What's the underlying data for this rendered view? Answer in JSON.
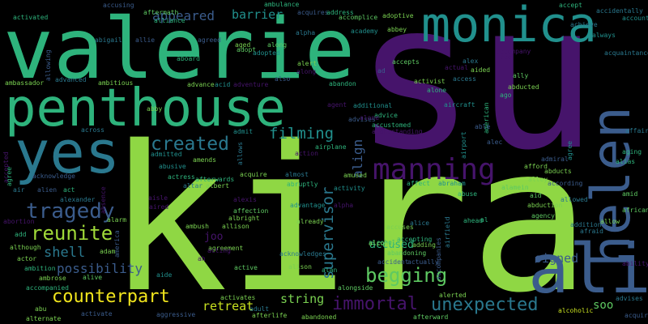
{
  "palette": {
    "background": "#000000",
    "purple": "#46146b",
    "green": "#2eb37c",
    "lime": "#8fd744",
    "teal": "#21908d",
    "blue": "#3b5c8c",
    "yellow": "#f1e51d"
  },
  "words": [
    {
      "id": "w0",
      "text": "su",
      "color": "#46146b"
    },
    {
      "id": "w1",
      "text": "kira",
      "color": "#8fd744"
    },
    {
      "id": "w2",
      "text": "valerie",
      "color": "#2eb37c"
    },
    {
      "id": "w3",
      "text": "penthouse",
      "color": "#2eb37c"
    },
    {
      "id": "w4",
      "text": "monica",
      "color": "#21908d"
    },
    {
      "id": "w5",
      "text": "helen",
      "color": "#3b5c8c"
    },
    {
      "id": "w6",
      "text": "ali",
      "color": "#3b5c8c"
    },
    {
      "id": "w7",
      "text": "yes",
      "color": "#2a788e"
    },
    {
      "id": "w8",
      "text": "manning",
      "color": "#46146b"
    },
    {
      "id": "w9",
      "text": "tragedy",
      "color": "#3b5c8c"
    },
    {
      "id": "w10",
      "text": "reunite",
      "color": "#a0da39"
    },
    {
      "id": "w11",
      "text": "created",
      "color": "#2a788e"
    },
    {
      "id": "w12",
      "text": "filming",
      "color": "#21908d"
    },
    {
      "id": "w13",
      "text": "begging",
      "color": "#5ec962"
    },
    {
      "id": "w14",
      "text": "counterpart",
      "color": "#f1e51d"
    },
    {
      "id": "w15",
      "text": "unexpected",
      "color": "#2a788e"
    },
    {
      "id": "w16",
      "text": "immortal",
      "color": "#46146b"
    },
    {
      "id": "w17",
      "text": "supervisor",
      "color": "#2a788e"
    },
    {
      "id": "w18",
      "text": "appeared",
      "color": "#3b5c8c"
    },
    {
      "id": "w19",
      "text": "barrier",
      "color": "#21908d"
    },
    {
      "id": "w20",
      "text": "shell",
      "color": "#2a788e"
    },
    {
      "id": "w21",
      "text": "possibility",
      "color": "#3b5c8c"
    },
    {
      "id": "w22",
      "text": "retreat",
      "color": "#c8e020"
    },
    {
      "id": "w23",
      "text": "string",
      "color": "#7ad151"
    },
    {
      "id": "w24",
      "text": "signed",
      "color": "#3b5c8c"
    },
    {
      "id": "w25",
      "text": "soo",
      "color": "#5ec962"
    },
    {
      "id": "w26",
      "text": "align",
      "color": "#3b5c8c"
    },
    {
      "id": "w27",
      "text": "joo",
      "color": "#46146b"
    },
    {
      "id": "w28",
      "text": "accused",
      "color": "#2eb37c"
    },
    {
      "id": "w29",
      "text": "ability",
      "color": "#46146b"
    },
    {
      "id": "w30",
      "text": "african",
      "color": "#5ec962"
    },
    {
      "id": "w31",
      "text": "affair",
      "color": "#2a788e"
    },
    {
      "id": "w32",
      "text": "alcohol",
      "color": "#2eb37c"
    },
    {
      "id": "w33",
      "text": "agency",
      "color": "#5ec962"
    },
    {
      "id": "w34",
      "text": "advises",
      "color": "#2a788e"
    },
    {
      "id": "w35",
      "text": "alliance",
      "color": "#2eb37c"
    },
    {
      "id": "w36",
      "text": "activated",
      "color": "#2eb37c"
    },
    {
      "id": "w37",
      "text": "aftermath",
      "color": "#5ec962"
    },
    {
      "id": "w38",
      "text": "ambulance",
      "color": "#2eb37c"
    },
    {
      "id": "w39",
      "text": "acquires",
      "color": "#3b5c8c"
    },
    {
      "id": "w40",
      "text": "address",
      "color": "#2eb37c"
    },
    {
      "id": "w41",
      "text": "accomplice",
      "color": "#5ec962"
    },
    {
      "id": "w42",
      "text": "adoptive",
      "color": "#7ad151"
    },
    {
      "id": "w43",
      "text": "accidentally",
      "color": "#2a788e"
    },
    {
      "id": "w44",
      "text": "accept",
      "color": "#2eb37c"
    },
    {
      "id": "w45",
      "text": "account",
      "color": "#21908d"
    },
    {
      "id": "w46",
      "text": "always",
      "color": "#21908d"
    },
    {
      "id": "w47",
      "text": "achieve",
      "color": "#2a788e"
    },
    {
      "id": "w48",
      "text": "acquaintance",
      "color": "#2a788e"
    },
    {
      "id": "w49",
      "text": "abigail",
      "color": "#2a788e"
    },
    {
      "id": "w50",
      "text": "agreed",
      "color": "#3b5c8c"
    },
    {
      "id": "w51",
      "text": "aged",
      "color": "#7ad151"
    },
    {
      "id": "w52",
      "text": "along",
      "color": "#5ec962"
    },
    {
      "id": "w53",
      "text": "alpha",
      "color": "#2a788e"
    },
    {
      "id": "w54",
      "text": "academy",
      "color": "#21908d"
    },
    {
      "id": "w55",
      "text": "abbey",
      "color": "#7ad151"
    },
    {
      "id": "w56",
      "text": "adopt",
      "color": "#5ec962"
    },
    {
      "id": "w57",
      "text": "adopted",
      "color": "#21908d"
    },
    {
      "id": "w58",
      "text": "alert",
      "color": "#7ad151"
    },
    {
      "id": "w59",
      "text": "accepts",
      "color": "#5ec962"
    },
    {
      "id": "w60",
      "text": "aboard",
      "color": "#2eb37c"
    },
    {
      "id": "w61",
      "text": "advanced",
      "color": "#2a788e"
    },
    {
      "id": "w62",
      "text": "ambitious",
      "color": "#7ad151"
    },
    {
      "id": "w63",
      "text": "ambassador",
      "color": "#7ad151"
    },
    {
      "id": "w64",
      "text": "advance",
      "color": "#7ad151"
    },
    {
      "id": "w65",
      "text": "acid",
      "color": "#21908d"
    },
    {
      "id": "w66",
      "text": "adventure",
      "color": "#46146b"
    },
    {
      "id": "w67",
      "text": "also",
      "color": "#3b5c8c"
    },
    {
      "id": "w68",
      "text": "abandon",
      "color": "#2eb37c"
    },
    {
      "id": "w69",
      "text": "activist",
      "color": "#7ad151"
    },
    {
      "id": "w70",
      "text": "aided",
      "color": "#7ad151"
    },
    {
      "id": "w71",
      "text": "access",
      "color": "#2a788e"
    },
    {
      "id": "w72",
      "text": "ally",
      "color": "#5ec962"
    },
    {
      "id": "w73",
      "text": "abducted",
      "color": "#7ad151"
    },
    {
      "id": "w74",
      "text": "alone",
      "color": "#2eb37c"
    },
    {
      "id": "w75",
      "text": "aircraft",
      "color": "#21908d"
    },
    {
      "id": "w76",
      "text": "ago",
      "color": "#2eb37c"
    },
    {
      "id": "w77",
      "text": "abby",
      "color": "#7ad151"
    },
    {
      "id": "w78",
      "text": "abusive",
      "color": "#21908d"
    },
    {
      "id": "w79",
      "text": "across",
      "color": "#2a788e"
    },
    {
      "id": "w80",
      "text": "admit",
      "color": "#21908d"
    },
    {
      "id": "w81",
      "text": "action",
      "color": "#46146b"
    },
    {
      "id": "w82",
      "text": "airplane",
      "color": "#2eb37c"
    },
    {
      "id": "w83",
      "text": "amends",
      "color": "#7ad151"
    },
    {
      "id": "w84",
      "text": "admitted",
      "color": "#21908d"
    },
    {
      "id": "w85",
      "text": "acquire",
      "color": "#7ad151"
    },
    {
      "id": "w86",
      "text": "almost",
      "color": "#2a788e"
    },
    {
      "id": "w87",
      "text": "amused",
      "color": "#7ad151"
    },
    {
      "id": "w88",
      "text": "actress",
      "color": "#2eb37c"
    },
    {
      "id": "w89",
      "text": "afterwards",
      "color": "#2eb37c"
    },
    {
      "id": "w90",
      "text": "albert",
      "color": "#7ad151"
    },
    {
      "id": "w91",
      "text": "altar",
      "color": "#2a788e"
    },
    {
      "id": "w92",
      "text": "abruptly",
      "color": "#2eb37c"
    },
    {
      "id": "w93",
      "text": "activity",
      "color": "#21908d"
    },
    {
      "id": "w94",
      "text": "affect",
      "color": "#2eb37c"
    },
    {
      "id": "w95",
      "text": "abraham",
      "color": "#21908d"
    },
    {
      "id": "w96",
      "text": "alamein",
      "color": "#5ec962"
    },
    {
      "id": "w97",
      "text": "alley",
      "color": "#7ad151"
    },
    {
      "id": "w98",
      "text": "abducts",
      "color": "#7ad151"
    },
    {
      "id": "w99",
      "text": "afford",
      "color": "#7ad151"
    },
    {
      "id": "w100",
      "text": "according",
      "color": "#3b5c8c"
    },
    {
      "id": "w101",
      "text": "aid",
      "color": "#5ec962"
    },
    {
      "id": "w102",
      "text": "abuse",
      "color": "#2eb37c"
    },
    {
      "id": "w103",
      "text": "allowed",
      "color": "#2a788e"
    },
    {
      "id": "w104",
      "text": "alias",
      "color": "#2eb37c"
    },
    {
      "id": "w105",
      "text": "aging",
      "color": "#2eb37c"
    },
    {
      "id": "w106",
      "text": "admiral",
      "color": "#3b5c8c"
    },
    {
      "id": "w107",
      "text": "agree",
      "color": "#21908d"
    },
    {
      "id": "w108",
      "text": "amid",
      "color": "#5ec962"
    },
    {
      "id": "w109",
      "text": "addition",
      "color": "#2a788e"
    },
    {
      "id": "w110",
      "text": "allow",
      "color": "#7ad151"
    },
    {
      "id": "w111",
      "text": "afraid",
      "color": "#2a788e"
    },
    {
      "id": "w112",
      "text": "abduction",
      "color": "#7ad151"
    },
    {
      "id": "w113",
      "text": "ahead",
      "color": "#2eb37c"
    },
    {
      "id": "w114",
      "text": "alice",
      "color": "#2a788e"
    },
    {
      "id": "w115",
      "text": "already",
      "color": "#7ad151"
    },
    {
      "id": "w116",
      "text": "albright",
      "color": "#7ad151"
    },
    {
      "id": "w117",
      "text": "allison",
      "color": "#7ad151"
    },
    {
      "id": "w118",
      "text": "affection",
      "color": "#5ec962"
    },
    {
      "id": "w119",
      "text": "advantage",
      "color": "#21908d"
    },
    {
      "id": "w120",
      "text": "alarm",
      "color": "#7ad151"
    },
    {
      "id": "w121",
      "text": "adam",
      "color": "#7ad151"
    },
    {
      "id": "w122",
      "text": "ambush",
      "color": "#7ad151"
    },
    {
      "id": "w123",
      "text": "abortion",
      "color": "#46146b"
    },
    {
      "id": "w124",
      "text": "although",
      "color": "#7ad151"
    },
    {
      "id": "w125",
      "text": "actor",
      "color": "#7ad151"
    },
    {
      "id": "w126",
      "text": "ambition",
      "color": "#2eb37c"
    },
    {
      "id": "w127",
      "text": "ambrose",
      "color": "#7ad151"
    },
    {
      "id": "w128",
      "text": "accompanied",
      "color": "#2eb37c"
    },
    {
      "id": "w129",
      "text": "abu",
      "color": "#7ad151"
    },
    {
      "id": "w130",
      "text": "alternate",
      "color": "#7ad151"
    },
    {
      "id": "w131",
      "text": "activate",
      "color": "#3b5c8c"
    },
    {
      "id": "w132",
      "text": "aggressive",
      "color": "#3b5c8c"
    },
    {
      "id": "w133",
      "text": "alive",
      "color": "#5ec962"
    },
    {
      "id": "w134",
      "text": "aide",
      "color": "#21908d"
    },
    {
      "id": "w135",
      "text": "agreement",
      "color": "#7ad151"
    },
    {
      "id": "w136",
      "text": "active",
      "color": "#5ec962"
    },
    {
      "id": "w137",
      "text": "alison",
      "color": "#7ad151"
    },
    {
      "id": "w138",
      "text": "activates",
      "color": "#7ad151"
    },
    {
      "id": "w139",
      "text": "adult",
      "color": "#2a788e"
    },
    {
      "id": "w140",
      "text": "afterlife",
      "color": "#7ad151"
    },
    {
      "id": "w141",
      "text": "acknowledges",
      "color": "#2a788e"
    },
    {
      "id": "w142",
      "text": "alan",
      "color": "#2eb37c"
    },
    {
      "id": "w143",
      "text": "alongside",
      "color": "#5ec962"
    },
    {
      "id": "w144",
      "text": "abandoned",
      "color": "#7ad151"
    },
    {
      "id": "w145",
      "text": "alcohol",
      "color": "#7ad151"
    },
    {
      "id": "w146",
      "text": "accident",
      "color": "#3b5c8c"
    },
    {
      "id": "w147",
      "text": "abandoning",
      "color": "#5ec962"
    },
    {
      "id": "w148",
      "text": "accepting",
      "color": "#2eb37c"
    },
    {
      "id": "w149",
      "text": "actually",
      "color": "#3b5c8c"
    },
    {
      "id": "w150",
      "text": "adding",
      "color": "#7ad151"
    },
    {
      "id": "w151",
      "text": "accuses",
      "color": "#7ad151"
    },
    {
      "id": "w152",
      "text": "alerted",
      "color": "#7ad151"
    },
    {
      "id": "w153",
      "text": "afterward",
      "color": "#5ec962"
    },
    {
      "id": "w154",
      "text": "alcoholic",
      "color": "#c8e020"
    },
    {
      "id": "w155",
      "text": "acquired",
      "color": "#3b5c8c"
    },
    {
      "id": "w156",
      "text": "agent",
      "color": "#46146b"
    },
    {
      "id": "w157",
      "text": "additional",
      "color": "#21908d"
    },
    {
      "id": "w158",
      "text": "advice",
      "color": "#2eb37c"
    },
    {
      "id": "w159",
      "text": "accustomed",
      "color": "#2eb37c"
    },
    {
      "id": "w160",
      "text": "alec",
      "color": "#3b5c8c"
    },
    {
      "id": "w161",
      "text": "airport",
      "color": "#21908d"
    },
    {
      "id": "w162",
      "text": "american",
      "color": "#2eb37c"
    },
    {
      "id": "w163",
      "text": "able",
      "color": "#3b5c8c"
    },
    {
      "id": "w164",
      "text": "accompany",
      "color": "#46146b"
    },
    {
      "id": "w165",
      "text": "ace",
      "color": "#46146b"
    },
    {
      "id": "w166",
      "text": "ad",
      "color": "#3b5c8c"
    },
    {
      "id": "w167",
      "text": "actual",
      "color": "#46146b"
    },
    {
      "id": "w168",
      "text": "alex",
      "color": "#2a788e"
    },
    {
      "id": "w169",
      "text": "accusing",
      "color": "#3b5c8c"
    },
    {
      "id": "w170",
      "text": "allie",
      "color": "#3b5c8c"
    },
    {
      "id": "w171",
      "text": "alongstanding",
      "color": "#46146b"
    },
    {
      "id": "w172",
      "text": "allows",
      "color": "#2a788e"
    },
    {
      "id": "w173",
      "text": "alexander",
      "color": "#2a788e"
    },
    {
      "id": "w174",
      "text": "acknowledge",
      "color": "#3b5c8c"
    },
    {
      "id": "w175",
      "text": "aisle",
      "color": "#46146b"
    },
    {
      "id": "w176",
      "text": "absence",
      "color": "#46146b"
    },
    {
      "id": "w177",
      "text": "america",
      "color": "#3b5c8c"
    },
    {
      "id": "w178",
      "text": "air",
      "color": "#2a788e"
    },
    {
      "id": "w179",
      "text": "alien",
      "color": "#3b5c8c"
    },
    {
      "id": "w180",
      "text": "act",
      "color": "#2eb37c"
    },
    {
      "id": "w181",
      "text": "add",
      "color": "#2eb37c"
    },
    {
      "id": "w182",
      "text": "accepted",
      "color": "#46146b"
    },
    {
      "id": "w183",
      "text": "allowing",
      "color": "#3b5c8c"
    },
    {
      "id": "w184",
      "text": "agree",
      "color": "#2eb37c"
    },
    {
      "id": "w185",
      "text": "ah",
      "color": "#46146b"
    },
    {
      "id": "w186",
      "text": "acting",
      "color": "#46146b"
    },
    {
      "id": "w187",
      "text": "airfield",
      "color": "#2a788e"
    },
    {
      "id": "w188",
      "text": "accompanies",
      "color": "#3b5c8c"
    },
    {
      "id": "w189",
      "text": "al",
      "color": "#2eb37c"
    },
    {
      "id": "w190",
      "text": "alexis",
      "color": "#46146b"
    },
    {
      "id": "w191",
      "text": "aired",
      "color": "#46146b"
    },
    {
      "id": "w192",
      "text": "alpha",
      "color": "#46146b"
    },
    {
      "id": "w193",
      "text": "along",
      "color": "#46146b"
    },
    {
      "id": "w194",
      "text": "advises",
      "color": "#3b5c8c"
    },
    {
      "id": "w195",
      "text": "alone",
      "color": "#46146b"
    }
  ]
}
